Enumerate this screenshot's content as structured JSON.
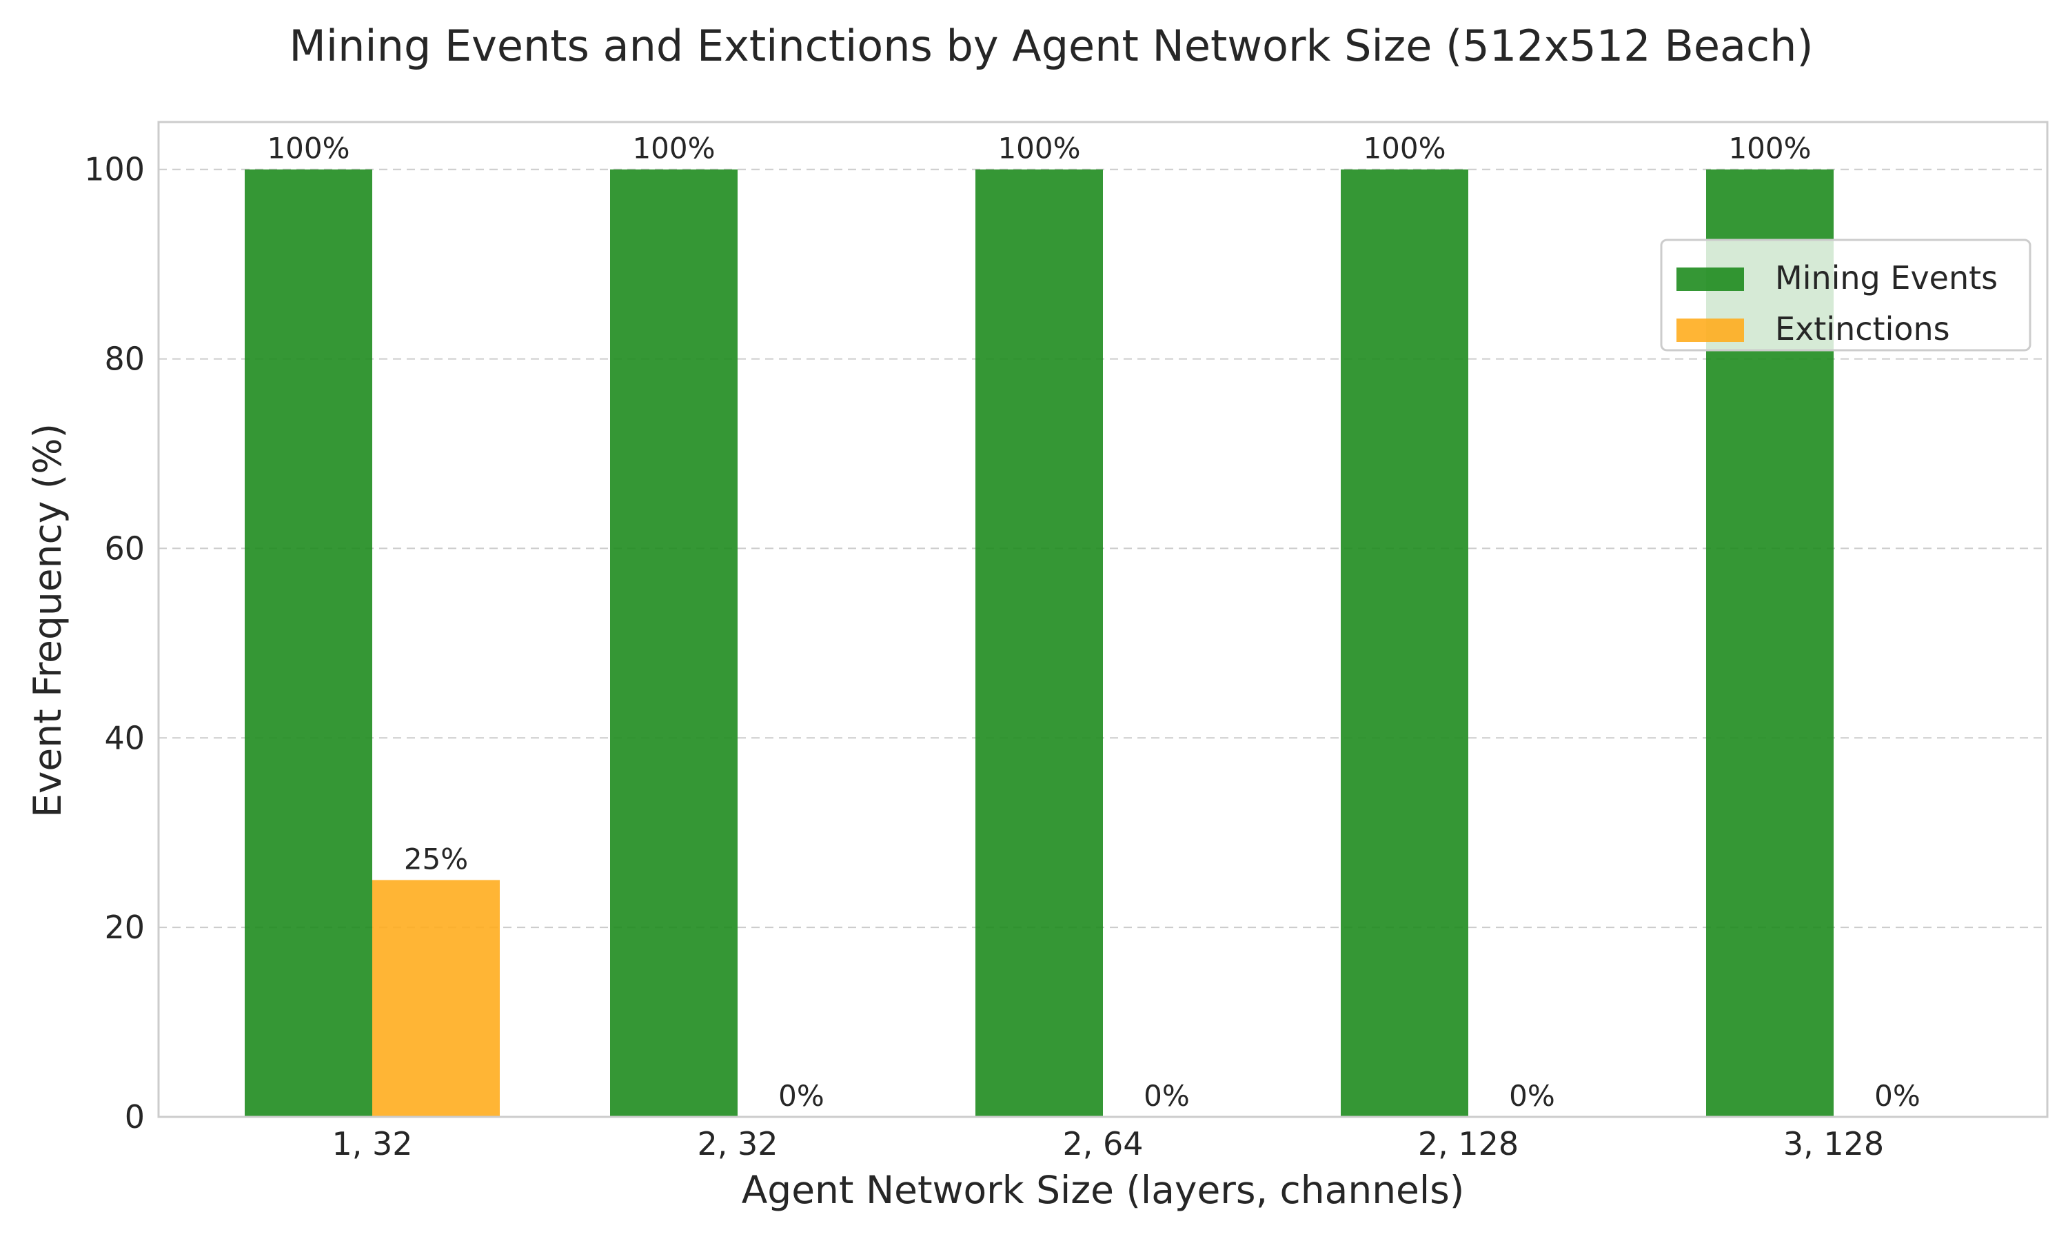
{
  "chart_data": {
    "type": "bar",
    "title": "Mining Events and Extinctions by Agent Network Size (512x512 Beach)",
    "xlabel": "Agent Network Size (layers, channels)",
    "ylabel": "Event Frequency (%)",
    "categories": [
      "1, 32",
      "2, 32",
      "2, 64",
      "2, 128",
      "3, 128"
    ],
    "series": [
      {
        "name": "Mining Events",
        "values": [
          100,
          100,
          100,
          100,
          100
        ],
        "labels": [
          "100%",
          "100%",
          "100%",
          "100%",
          "100%"
        ],
        "color": "#1f8c1f"
      },
      {
        "name": "Extinctions",
        "values": [
          25,
          0,
          0,
          0,
          0
        ],
        "labels": [
          "25%",
          "0%",
          "0%",
          "0%",
          "0%"
        ],
        "color": "#ffad1f"
      }
    ],
    "ylim": [
      0,
      105
    ],
    "yticks": [
      0,
      20,
      40,
      60,
      80,
      100
    ],
    "grid": true,
    "legend_position": "upper-right"
  }
}
